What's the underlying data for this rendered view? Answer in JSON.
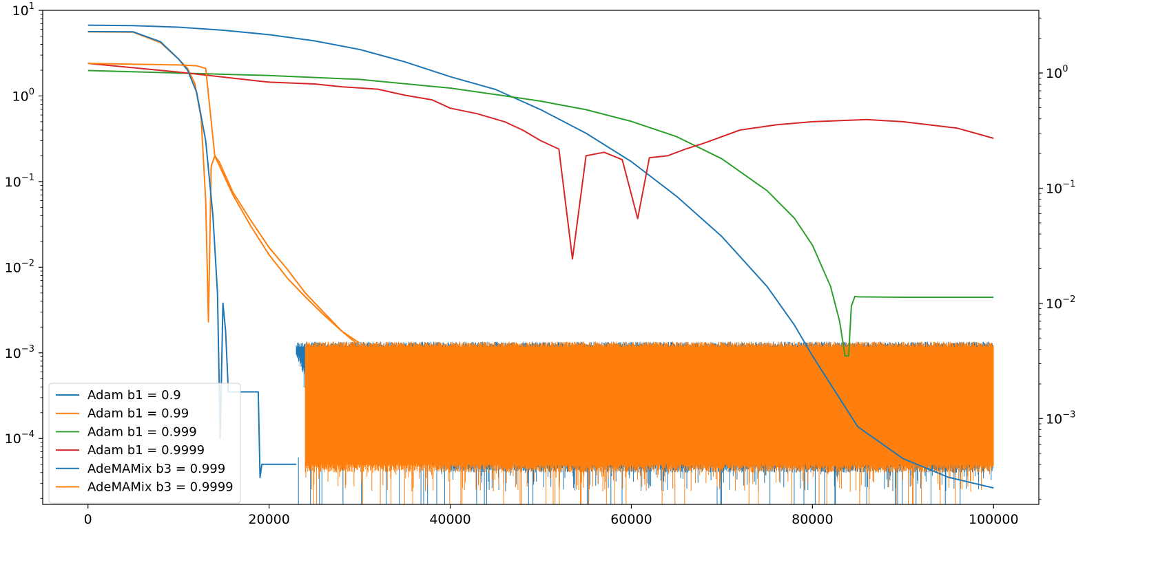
{
  "chart_data": {
    "type": "line",
    "title": "",
    "xlabel": "",
    "ylabel": "",
    "xlim": [
      -5000,
      105000
    ],
    "x_ticks": [
      0,
      20000,
      40000,
      60000,
      80000,
      100000
    ],
    "x_tick_labels": [
      "0",
      "20000",
      "40000",
      "60000",
      "80000",
      "100000"
    ],
    "y_left": {
      "scale": "log",
      "lim": [
        1.7e-05,
        10
      ],
      "ticks": [
        0.0001,
        0.001,
        0.01,
        0.1,
        1,
        10
      ],
      "tick_labels": [
        {
          "base": "10",
          "exp": "−4"
        },
        {
          "base": "10",
          "exp": "−3"
        },
        {
          "base": "10",
          "exp": "−2"
        },
        {
          "base": "10",
          "exp": "−1"
        },
        {
          "base": "10",
          "exp": "0"
        },
        {
          "base": "10",
          "exp": "1"
        }
      ]
    },
    "y_right": {
      "scale": "log",
      "lim": [
        0.00018,
        3.5
      ],
      "ticks": [
        0.001,
        0.01,
        0.1,
        1
      ],
      "tick_labels": [
        {
          "base": "10",
          "exp": "−3"
        },
        {
          "base": "10",
          "exp": "−2"
        },
        {
          "base": "10",
          "exp": "−1"
        },
        {
          "base": "10",
          "exp": "0"
        }
      ]
    },
    "grid": false,
    "legend_position": "lower-left",
    "series": [
      {
        "name": "Adam b1 = 0.9",
        "color": "#1f77b4",
        "axis": "right",
        "x": [
          0,
          5000,
          10000,
          15000,
          20000,
          25000,
          30000,
          35000,
          40000,
          45000,
          50000,
          55000,
          60000,
          65000,
          70000,
          75000,
          78000,
          80000,
          85000,
          90000,
          95000,
          100000
        ],
        "y": [
          2.6,
          2.58,
          2.5,
          2.35,
          2.15,
          1.9,
          1.6,
          1.25,
          0.93,
          0.72,
          0.48,
          0.3,
          0.17,
          0.085,
          0.038,
          0.014,
          0.0065,
          0.0035,
          0.00085,
          0.00045,
          0.00031,
          0.00025
        ]
      },
      {
        "name": "Adam b1 = 0.99",
        "color": "#ff7f0e",
        "axis": "left",
        "x": [
          0,
          5000,
          8000,
          10000,
          11000,
          11800,
          12500,
          13000,
          13300,
          13600,
          14000,
          14500,
          16000,
          18000,
          20000,
          22000,
          24000,
          26000,
          28000,
          30000,
          32000
        ],
        "y": [
          5.6,
          5.55,
          4.2,
          2.7,
          2.1,
          1.4,
          0.55,
          0.06,
          0.0023,
          0.15,
          0.2,
          0.17,
          0.075,
          0.035,
          0.017,
          0.0095,
          0.005,
          0.003,
          0.0018,
          0.0012,
          0.0011
        ]
      },
      {
        "name": "Adam b1 = 0.999",
        "color": "#2ca02c",
        "axis": "right",
        "x": [
          0,
          10000,
          20000,
          30000,
          40000,
          45000,
          50000,
          55000,
          60000,
          65000,
          70000,
          75000,
          78000,
          80000,
          82000,
          83000,
          83600,
          84000,
          84300,
          84700,
          85000,
          90000,
          100000
        ],
        "y": [
          1.05,
          1.0,
          0.95,
          0.88,
          0.74,
          0.65,
          0.57,
          0.48,
          0.38,
          0.28,
          0.18,
          0.095,
          0.055,
          0.032,
          0.014,
          0.007,
          0.0035,
          0.0035,
          0.0095,
          0.0115,
          0.0114,
          0.0113,
          0.0113
        ]
      },
      {
        "name": "Adam b1 = 0.9999",
        "color": "#d62728",
        "axis": "left",
        "x": [
          0,
          10000,
          20000,
          25000,
          28000,
          32000,
          35000,
          38000,
          40000,
          43000,
          46000,
          48000,
          50000,
          52000,
          53500,
          55000,
          57000,
          59000,
          60700,
          62000,
          64000,
          66000,
          68000,
          72000,
          76000,
          80000,
          86000,
          90000,
          96000,
          100000
        ],
        "y": [
          2.4,
          1.9,
          1.45,
          1.38,
          1.28,
          1.2,
          1.02,
          0.9,
          0.72,
          0.62,
          0.5,
          0.4,
          0.3,
          0.24,
          0.0125,
          0.2,
          0.22,
          0.18,
          0.037,
          0.19,
          0.2,
          0.24,
          0.28,
          0.4,
          0.46,
          0.5,
          0.53,
          0.5,
          0.42,
          0.32
        ]
      },
      {
        "name": "AdeMAMix b3 = 0.999",
        "color": "#1f77b4",
        "axis": "left",
        "x": [
          0,
          5000,
          8000,
          10000,
          11000,
          12000,
          13000,
          13800,
          14300,
          14600,
          14900,
          15200,
          15500,
          16000,
          18800,
          19000,
          19200,
          20000,
          23000
        ],
        "y": [
          5.65,
          5.6,
          4.3,
          2.7,
          2.0,
          1.1,
          0.3,
          0.04,
          0.005,
          0.0001,
          0.0038,
          0.0018,
          0.00035,
          0.00035,
          0.00035,
          3.5e-05,
          5e-05,
          5e-05,
          5e-05
        ]
      },
      {
        "name": "AdeMAMix b3 = 0.9999",
        "color": "#ff7f0e",
        "axis": "left",
        "x": [
          0,
          10000,
          12000,
          13000,
          14000,
          16000,
          18000,
          20000,
          22000,
          24000,
          26000,
          28000,
          30000
        ],
        "y": [
          2.4,
          2.3,
          2.25,
          2.1,
          0.2,
          0.07,
          0.03,
          0.014,
          0.0075,
          0.0045,
          0.0028,
          0.0018,
          0.0013
        ]
      }
    ],
    "noise_bands": [
      {
        "series": "AdeMAMix b3 = 0.999",
        "color": "#1f77b4",
        "x_range": [
          23000,
          100000
        ],
        "y_range": [
          5e-05,
          0.0013
        ],
        "x_start": [
          23000,
          24000,
          25000,
          27000,
          30000,
          33000,
          37000,
          40000
        ],
        "y_floor": [
          0.0011,
          0.0006,
          0.0004,
          0.00025,
          0.00015,
          0.0001,
          7e-05,
          5e-05
        ]
      },
      {
        "series": "AdeMAMix b3 = 0.9999",
        "color": "#ff7f0e",
        "x_range": [
          24000,
          100000
        ],
        "y_range": [
          5e-05,
          0.0013
        ]
      }
    ]
  }
}
